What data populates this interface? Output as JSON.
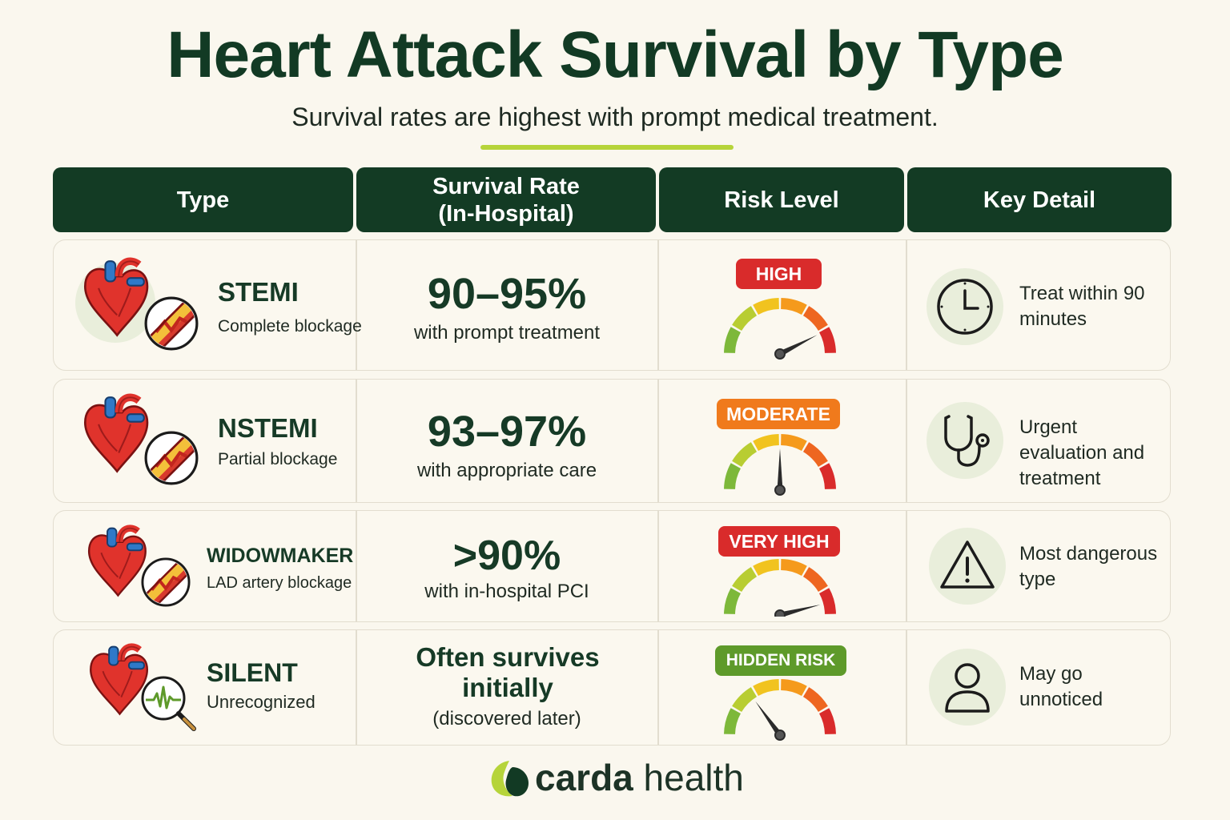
{
  "title": "Heart Attack Survival by Type",
  "subtitle": "Survival rates are highest with prompt medical treatment.",
  "headers": [
    "Type",
    "Survival Rate\n(In-Hospital)",
    "Risk Level",
    "Key Detail"
  ],
  "rows": [
    {
      "type": "STEMI",
      "desc": "Complete blockage",
      "rate": "90–95%",
      "rate_sub": "with prompt treatment",
      "risk": "HIGH",
      "risk_color": "#d92b2b",
      "needle_level": 0.85,
      "detail_icon": "clock-icon",
      "detail": "Treat within 90 minutes"
    },
    {
      "type": "NSTEMI",
      "desc": "Partial blockage",
      "rate": "93–97%",
      "rate_sub": "with appropriate care",
      "risk": "MODERATE",
      "risk_color": "#f07a1c",
      "needle_level": 0.5,
      "detail_icon": "stethoscope-icon",
      "detail": "Urgent evaluation and treatment"
    },
    {
      "type": "WIDOWMAKER",
      "desc": "LAD artery blockage",
      "rate": ">90%",
      "rate_sub": "with in-hospital PCI",
      "risk": "VERY HIGH",
      "risk_color": "#d92b2b",
      "needle_level": 0.92,
      "detail_icon": "warning-icon",
      "detail": "Most dangerous type"
    },
    {
      "type": "SILENT",
      "desc": "Unrecognized",
      "rate": "Often survives initially",
      "rate_sub": "(discovered later)",
      "risk": "HIDDEN RISK",
      "risk_color": "#5e9a2a",
      "needle_level": 0.3,
      "detail_icon": "user-icon",
      "detail": "May go unnoticed"
    }
  ],
  "footer": {
    "brand_bold": "carda",
    "brand_light": "health"
  },
  "colors": {
    "header_bg": "#133b24",
    "accent": "#b6d43a",
    "gauge": [
      "#7db83a",
      "#b8cd32",
      "#f1c31f",
      "#f59a1c",
      "#ee6620",
      "#d92b2b"
    ]
  }
}
